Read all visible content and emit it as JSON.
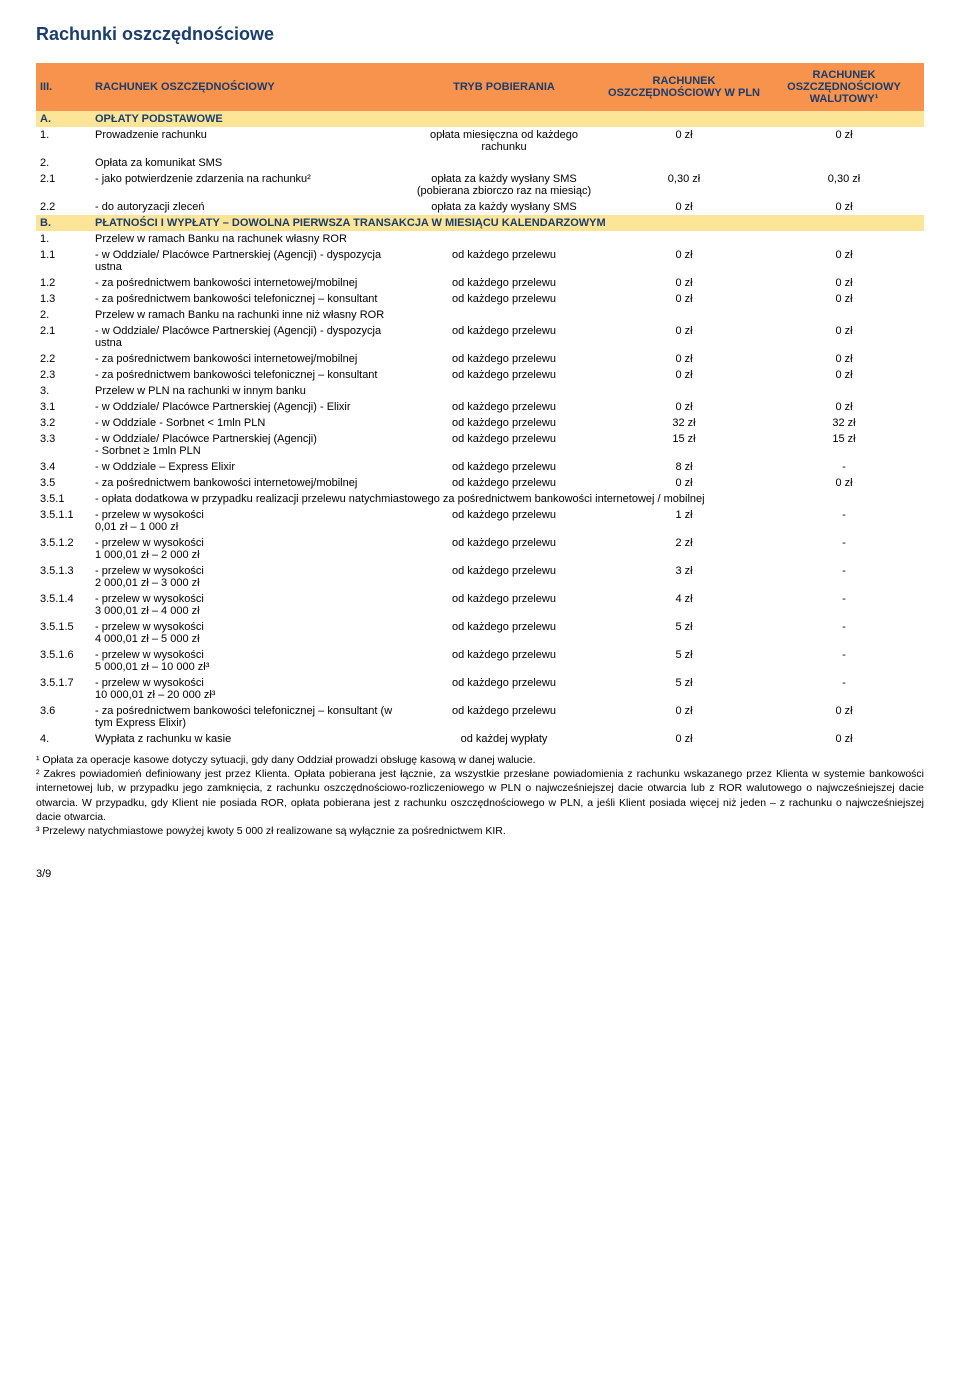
{
  "colors": {
    "yellow": "#fde597",
    "orange": "#f7934c",
    "text_navy": "#1a3d6d"
  },
  "title": "Rachunki oszczędnościowe",
  "header": {
    "num": "III.",
    "account": "RACHUNEK OSZCZĘDNOŚCIOWY",
    "tryb": "TRYB POBIERANIA",
    "col_pln": "RACHUNEK OSZCZĘDNOŚCIOWY W PLN",
    "col_wal": "RACHUNEK OSZCZĘDNOŚCIOWY WALUTOWY¹"
  },
  "sectionA": {
    "num": "A.",
    "label": "OPŁATY PODSTAWOWE"
  },
  "rA1": {
    "num": "1.",
    "desc": "Prowadzenie rachunku",
    "tryb": "opłata miesięczna od każdego rachunku",
    "v1": "0 zł",
    "v2": "0 zł"
  },
  "rA2": {
    "num": "2.",
    "desc": "Opłata za komunikat SMS"
  },
  "rA21": {
    "num": "2.1",
    "desc": "- jako potwierdzenie zdarzenia na rachunku²",
    "tryb": "opłata za każdy wysłany SMS (pobierana zbiorczo raz na miesiąc)",
    "v1": "0,30 zł",
    "v2": "0,30 zł"
  },
  "rA22": {
    "num": "2.2",
    "desc": "- do autoryzacji zleceń",
    "tryb": "opłata za każdy wysłany SMS",
    "v1": "0 zł",
    "v2": "0 zł"
  },
  "sectionB": {
    "num": "B.",
    "label": "PŁATNOŚCI I WYPŁATY – DOWOLNA PIERWSZA TRANSAKCJA W MIESIĄCU KALENDARZOWYM"
  },
  "rB1": {
    "num": "1.",
    "desc": "Przelew w ramach Banku na rachunek własny ROR"
  },
  "rB11": {
    "num": "1.1",
    "desc": "- w Oddziale/ Placówce Partnerskiej (Agencji) - dyspozycja ustna",
    "tryb": "od każdego przelewu",
    "v1": "0 zł",
    "v2": "0 zł"
  },
  "rB12": {
    "num": "1.2",
    "desc": "- za pośrednictwem bankowości internetowej/mobilnej",
    "tryb": "od każdego przelewu",
    "v1": "0 zł",
    "v2": "0 zł"
  },
  "rB13": {
    "num": "1.3",
    "desc": "- za pośrednictwem bankowości telefonicznej – konsultant",
    "tryb": "od każdego przelewu",
    "v1": "0 zł",
    "v2": "0 zł"
  },
  "rB2": {
    "num": "2.",
    "desc": "Przelew w ramach Banku na rachunki inne niż własny ROR"
  },
  "rB21": {
    "num": "2.1",
    "desc": "- w Oddziale/ Placówce Partnerskiej (Agencji) - dyspozycja ustna",
    "tryb": "od każdego przelewu",
    "v1": "0 zł",
    "v2": "0 zł"
  },
  "rB22": {
    "num": "2.2",
    "desc": "- za pośrednictwem bankowości internetowej/mobilnej",
    "tryb": "od każdego przelewu",
    "v1": "0 zł",
    "v2": "0 zł"
  },
  "rB23": {
    "num": "2.3",
    "desc": "- za pośrednictwem bankowości telefonicznej – konsultant",
    "tryb": "od każdego przelewu",
    "v1": "0 zł",
    "v2": "0 zł"
  },
  "rB3": {
    "num": "3.",
    "desc": "Przelew w PLN na rachunki w innym banku"
  },
  "rB31": {
    "num": "3.1",
    "desc": "- w Oddziale/ Placówce Partnerskiej (Agencji) - Elixir",
    "tryb": "od każdego przelewu",
    "v1": "0 zł",
    "v2": "0 zł"
  },
  "rB32": {
    "num": "3.2",
    "desc": "- w Oddziale - Sorbnet < 1mln PLN",
    "tryb": "od każdego przelewu",
    "v1": "32 zł",
    "v2": "32 zł"
  },
  "rB33": {
    "num": "3.3",
    "desc": "- w Oddziale/ Placówce Partnerskiej (Agencji)\n- Sorbnet ≥ 1mln PLN",
    "tryb": "od każdego przelewu",
    "v1": "15 zł",
    "v2": "15 zł"
  },
  "rB34": {
    "num": "3.4",
    "desc": "- w Oddziale – Express Elixir",
    "tryb": "od każdego przelewu",
    "v1": "8 zł",
    "v2": "-"
  },
  "rB35": {
    "num": "3.5",
    "desc": "- za pośrednictwem bankowości internetowej/mobilnej",
    "tryb": "od każdego przelewu",
    "v1": "0 zł",
    "v2": "0 zł"
  },
  "rB351": {
    "num": "3.5.1",
    "desc": "- opłata dodatkowa w przypadku realizacji przelewu natychmiastowego za pośrednictwem bankowości internetowej / mobilnej"
  },
  "rB3511": {
    "num": "3.5.1.1",
    "desc": "-   przelew w wysokości\n    0,01 zł – 1 000 zł",
    "tryb": "od każdego przelewu",
    "v1": "1 zł",
    "v2": "-"
  },
  "rB3512": {
    "num": "3.5.1.2",
    "desc": "-   przelew w wysokości\n    1 000,01 zł – 2 000 zł",
    "tryb": "od każdego przelewu",
    "v1": "2 zł",
    "v2": "-"
  },
  "rB3513": {
    "num": "3.5.1.3",
    "desc": "-   przelew w wysokości\n    2 000,01 zł – 3 000 zł",
    "tryb": "od każdego przelewu",
    "v1": "3 zł",
    "v2": "-"
  },
  "rB3514": {
    "num": "3.5.1.4",
    "desc": "-   przelew w wysokości\n    3 000,01 zł – 4 000 zł",
    "tryb": "od każdego przelewu",
    "v1": "4 zł",
    "v2": "-"
  },
  "rB3515": {
    "num": "3.5.1.5",
    "desc": "-   przelew w wysokości\n    4 000,01 zł – 5 000 zł",
    "tryb": "od każdego przelewu",
    "v1": "5 zł",
    "v2": "-"
  },
  "rB3516": {
    "num": "3.5.1.6",
    "desc": "-   przelew w wysokości\n    5 000,01 zł – 10 000 zł³",
    "tryb": "od każdego przelewu",
    "v1": "5 zł",
    "v2": "-"
  },
  "rB3517": {
    "num": "3.5.1.7",
    "desc": "-   przelew w wysokości\n    10 000,01 zł – 20 000 zł³",
    "tryb": "od każdego przelewu",
    "v1": "5 zł",
    "v2": "-"
  },
  "rB36": {
    "num": "3.6",
    "desc": "- za pośrednictwem bankowości telefonicznej – konsultant (w tym Express Elixir)",
    "tryb": "od każdego przelewu",
    "v1": "0 zł",
    "v2": "0 zł"
  },
  "rB4": {
    "num": "4.",
    "desc": "Wypłata z rachunku w kasie",
    "tryb": "od każdej wypłaty",
    "v1": "0 zł",
    "v2": "0 zł"
  },
  "footnotes": {
    "f1": "¹ Opłata za operacje kasowe dotyczy sytuacji, gdy dany Oddział prowadzi obsługę kasową w danej walucie.",
    "f2": "² Zakres powiadomień definiowany jest przez Klienta. Opłata pobierana jest łącznie, za wszystkie przesłane powiadomienia z rachunku wskazanego przez Klienta w systemie bankowości internetowej lub, w przypadku jego zamknięcia, z rachunku oszczędnościowo-rozliczeniowego w PLN o najwcześniejszej dacie otwarcia lub z ROR walutowego o najwcześniejszej dacie otwarcia. W przypadku, gdy Klient nie posiada ROR, opłata pobierana jest z rachunku oszczędnościowego w PLN, a jeśli Klient posiada więcej niż jeden – z rachunku o najwcześniejszej dacie otwarcia.",
    "f3": "³ Przelewy natychmiastowe powyżej kwoty 5 000 zł realizowane są wyłącznie za pośrednictwem KIR."
  },
  "pagenum": "3/9"
}
